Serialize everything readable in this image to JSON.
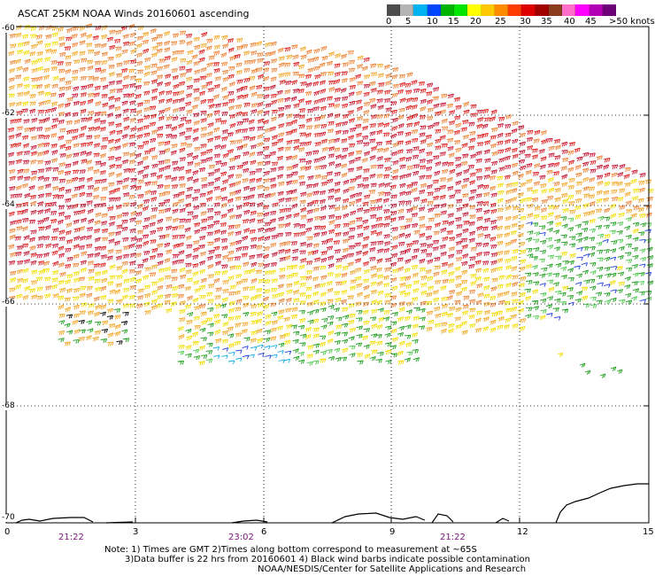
{
  "title": "ASCAT 25KM NOAA Winds 20160601 ascending",
  "legend": {
    "colors": [
      "#4d4d4d",
      "#b4b4b4",
      "#00b3f0",
      "#0046ff",
      "#00b400",
      "#00e600",
      "#ffff00",
      "#ffc800",
      "#ff8c00",
      "#ff3c00",
      "#dc0000",
      "#a00000",
      "#8c3c1e",
      "#ff6ec8",
      "#ff00ff",
      "#b400b4",
      "#6e0078"
    ],
    "labels": [
      "0",
      "5",
      "10",
      "15",
      "20",
      "25",
      "30",
      "35",
      "40",
      "45"
    ],
    "unit": ">50 knots"
  },
  "y_axis": {
    "labels": [
      "-60",
      "-62",
      "-64",
      "-66",
      "-68",
      "-70"
    ]
  },
  "x_axis": {
    "labels": [
      "0",
      "3",
      "6",
      "9",
      "12",
      "15"
    ]
  },
  "times": [
    "21:22",
    "23:02",
    "21:22"
  ],
  "notes": [
    "Note: 1) Times are GMT 2)Times along bottom correspond to measurement at ~65S",
    "3)Data buffer is 22 hrs from 20160601 4) Black wind barbs indicate possible contamination",
    "NOAA/NESDIS/Center for Satellite Applications and Research"
  ]
}
